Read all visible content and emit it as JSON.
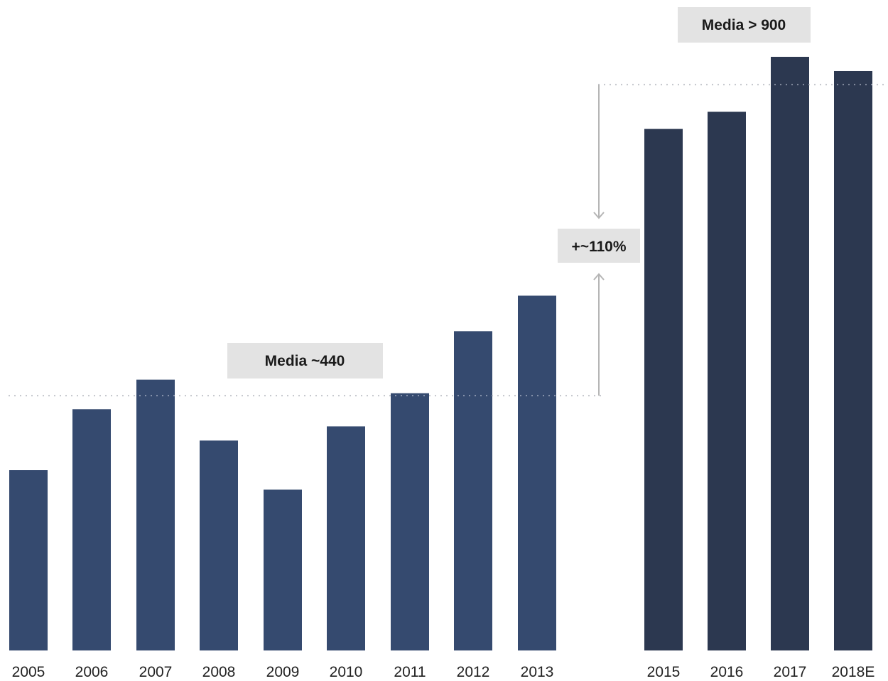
{
  "chart_data": {
    "type": "bar",
    "title": "",
    "xlabel": "",
    "ylabel": "",
    "ylim": [
      0,
      1000
    ],
    "grid": false,
    "legend": "none",
    "categories": [
      "2005",
      "2006",
      "2007",
      "2008",
      "2009",
      "2010",
      "2011",
      "2012",
      "2013",
      "2015",
      "2016",
      "2017",
      "2018E"
    ],
    "values": [
      305,
      408,
      458,
      355,
      272,
      379,
      435,
      540,
      600,
      882,
      911,
      1004,
      980
    ],
    "bar_colors": [
      "#354a6f",
      "#354a6f",
      "#354a6f",
      "#354a6f",
      "#354a6f",
      "#354a6f",
      "#354a6f",
      "#354a6f",
      "#354a6f",
      "#2c3850",
      "#2c3850",
      "#2c3850",
      "#2c3850"
    ],
    "annotations": {
      "mean_early": {
        "label": "Media ~440",
        "value": 431
      },
      "mean_late": {
        "label": "Media > 900",
        "value": 957
      },
      "change": {
        "label": "+~110%"
      }
    },
    "colors": {
      "label_box": "#e3e3e3",
      "reference_line": "#b5b5b5",
      "arrow": "#b5b5b5"
    }
  }
}
